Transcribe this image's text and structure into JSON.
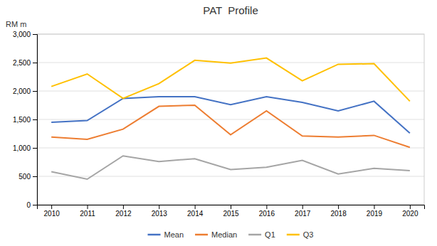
{
  "chart_data": {
    "type": "line",
    "title": "PAT  Profile",
    "ylabel": "RM m",
    "x": [
      2010,
      2011,
      2012,
      2013,
      2014,
      2015,
      2016,
      2017,
      2018,
      2019,
      2020
    ],
    "xlim": [
      2009.6,
      2020.4
    ],
    "xticks": [
      2010,
      2011,
      2012,
      2013,
      2014,
      2015,
      2016,
      2017,
      2018,
      2019,
      2020
    ],
    "ylim": [
      0,
      3000
    ],
    "yticks": [
      0,
      500,
      {
        "value": 1000,
        "label": "1,000"
      },
      {
        "value": 1500,
        "label": "1,500"
      },
      {
        "value": 2000,
        "label": "2,000"
      },
      {
        "value": 2500,
        "label": "2,500"
      },
      {
        "value": 3000,
        "label": "3,000"
      }
    ],
    "grid": true,
    "legend": "bottom",
    "series": [
      {
        "name": "Mean",
        "color": "#4472C4",
        "values": [
          1450,
          1480,
          1870,
          1900,
          1900,
          1760,
          1900,
          1800,
          1650,
          1820,
          1260
        ]
      },
      {
        "name": "Median",
        "color": "#ED7D31",
        "values": [
          1190,
          1150,
          1330,
          1730,
          1750,
          1230,
          1650,
          1210,
          1190,
          1220,
          1010
        ]
      },
      {
        "name": "Q1",
        "color": "#A5A5A5",
        "values": [
          580,
          450,
          860,
          760,
          810,
          620,
          660,
          780,
          540,
          640,
          600
        ]
      },
      {
        "name": "Q3",
        "color": "#FFC000",
        "values": [
          2080,
          2300,
          1870,
          2130,
          2540,
          2490,
          2580,
          2180,
          2470,
          2480,
          1820
        ]
      }
    ]
  }
}
